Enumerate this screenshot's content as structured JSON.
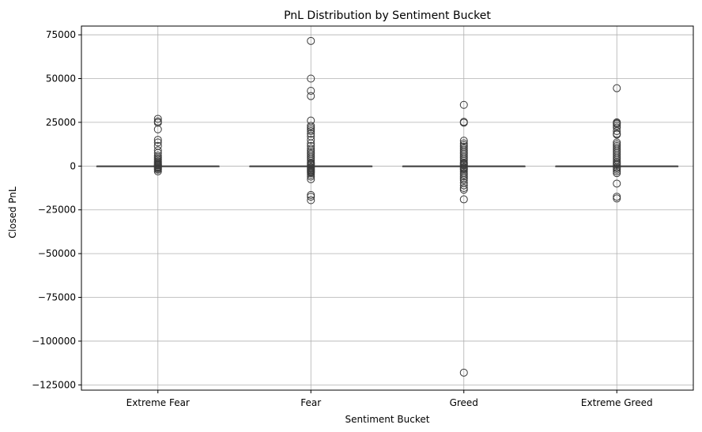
{
  "chart_data": {
    "type": "box",
    "title": "PnL Distribution by Sentiment Bucket",
    "xlabel": "Sentiment Bucket",
    "ylabel": "Closed PnL",
    "categories": [
      "Extreme Fear",
      "Fear",
      "Greed",
      "Extreme Greed"
    ],
    "ylim": [
      -128000,
      80000
    ],
    "yticks": [
      75000,
      50000,
      25000,
      0,
      -25000,
      -50000,
      -75000,
      -100000,
      -125000
    ],
    "ytick_labels": [
      "75000",
      "50000",
      "25000",
      "0",
      "−25000",
      "−50000",
      "−75000",
      "−100000",
      "−125000"
    ],
    "grid": true,
    "box_color": "#3a3a3a",
    "grid_color": "#b0b0b0",
    "boxes": [
      {
        "category": "Extreme Fear",
        "q1": 0,
        "median": 0,
        "q3": 0,
        "whisker_low": 0,
        "whisker_high": 0,
        "outliers": [
          27000,
          25500,
          24800,
          21000,
          15000,
          13500,
          11500,
          9000,
          7500,
          6000,
          5000,
          4200,
          3500,
          2800,
          2200,
          1700,
          1200,
          800,
          500,
          300,
          -300,
          -600,
          -1000,
          -1500,
          -2000,
          -3000
        ]
      },
      {
        "category": "Fear",
        "q1": 0,
        "median": 0,
        "q3": 0,
        "whisker_low": 0,
        "whisker_high": 0,
        "outliers": [
          71500,
          50000,
          43000,
          40000,
          26000,
          23000,
          22000,
          21000,
          20000,
          18500,
          17000,
          15000,
          13000,
          11500,
          10000,
          9000,
          8000,
          7000,
          6000,
          5000,
          4000,
          3000,
          2000,
          1500,
          1000,
          500,
          -500,
          -1000,
          -1500,
          -2000,
          -2500,
          -3000,
          -3500,
          -4000,
          -5000,
          -6000,
          -7500,
          -16500,
          -17500,
          -19500
        ]
      },
      {
        "category": "Greed",
        "q1": 0,
        "median": 0,
        "q3": 0,
        "whisker_low": 0,
        "whisker_high": 0,
        "outliers": [
          35000,
          25300,
          24800,
          14500,
          13000,
          12000,
          11000,
          10000,
          9000,
          8000,
          7000,
          6000,
          5000,
          4000,
          3000,
          2000,
          1500,
          1000,
          500,
          -500,
          -1000,
          -1500,
          -2000,
          -3000,
          -4000,
          -5000,
          -6000,
          -7000,
          -8000,
          -9500,
          -11000,
          -12500,
          -13500,
          -19000,
          -118000
        ]
      },
      {
        "category": "Extreme Greed",
        "q1": 0,
        "median": 0,
        "q3": 0,
        "whisker_low": 0,
        "whisker_high": 0,
        "outliers": [
          44500,
          25000,
          24500,
          24000,
          23000,
          22000,
          20000,
          18500,
          18000,
          13500,
          12500,
          11500,
          10500,
          9500,
          8500,
          7500,
          6500,
          5500,
          4500,
          3500,
          2500,
          1800,
          1200,
          600,
          -600,
          -1200,
          -2000,
          -3000,
          -4000,
          -10000,
          -17500,
          -18500
        ]
      }
    ]
  }
}
